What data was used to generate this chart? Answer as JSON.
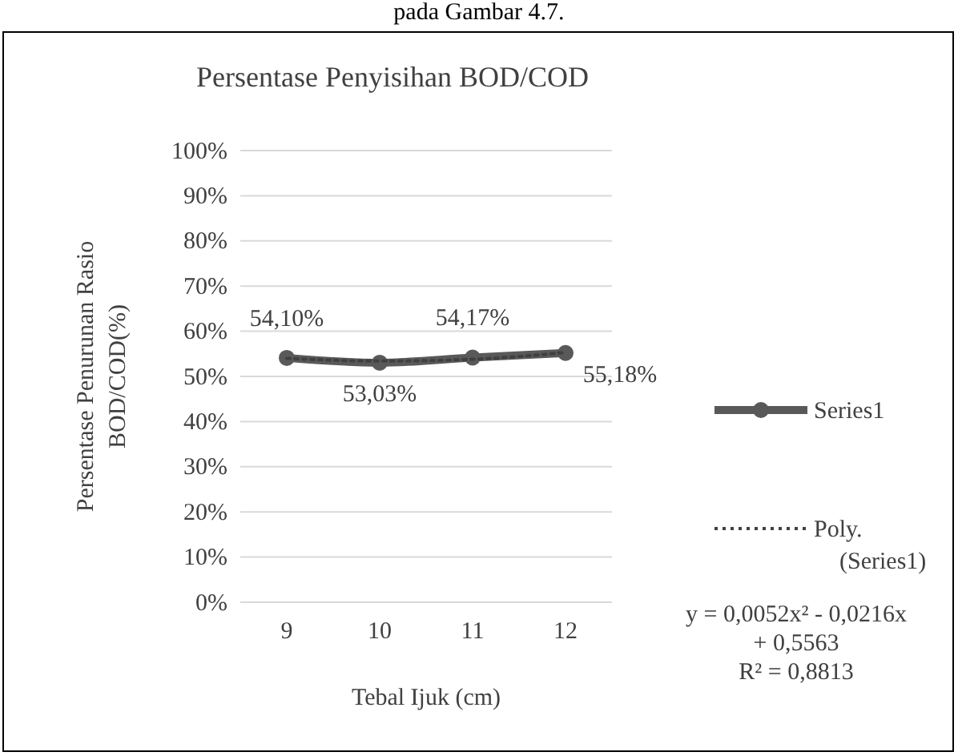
{
  "chart_data": {
    "type": "line",
    "title": "Persentase Penyisihan BOD/COD",
    "xlabel": "Tebal Ijuk (cm)",
    "ylabel": "Persentase Penurunan Rasio BOD/COD(%)",
    "categories": [
      "9",
      "10",
      "11",
      "12"
    ],
    "series": [
      {
        "name": "Series1",
        "color": "#595959",
        "values": [
          54.1,
          53.03,
          54.17,
          55.18
        ],
        "value_labels": [
          "54,10%",
          "53,03%",
          "54,17%",
          "55,18%"
        ],
        "marker": "circle",
        "line_style": "solid"
      },
      {
        "name": "Poly. (Series1)",
        "color": "#404040",
        "values": [
          54.0,
          53.4,
          53.8,
          55.3
        ],
        "marker": "none",
        "line_style": "dotted"
      }
    ],
    "ylim": [
      0,
      100
    ],
    "yticks": [
      {
        "value": 0,
        "label": "0%"
      },
      {
        "value": 10,
        "label": "10%"
      },
      {
        "value": 20,
        "label": "20%"
      },
      {
        "value": 30,
        "label": "30%"
      },
      {
        "value": 40,
        "label": "40%"
      },
      {
        "value": 50,
        "label": "50%"
      },
      {
        "value": 60,
        "label": "60%"
      },
      {
        "value": 70,
        "label": "70%"
      },
      {
        "value": 80,
        "label": "80%"
      },
      {
        "value": 90,
        "label": "90%"
      },
      {
        "value": 100,
        "label": "100%"
      }
    ],
    "grid": "y",
    "legend": "right",
    "annotations": [
      "pada Gambar 4.7.",
      "y = 0,0052x² - 0,0216x + 0,5563",
      "R² = 0,8813"
    ]
  }
}
